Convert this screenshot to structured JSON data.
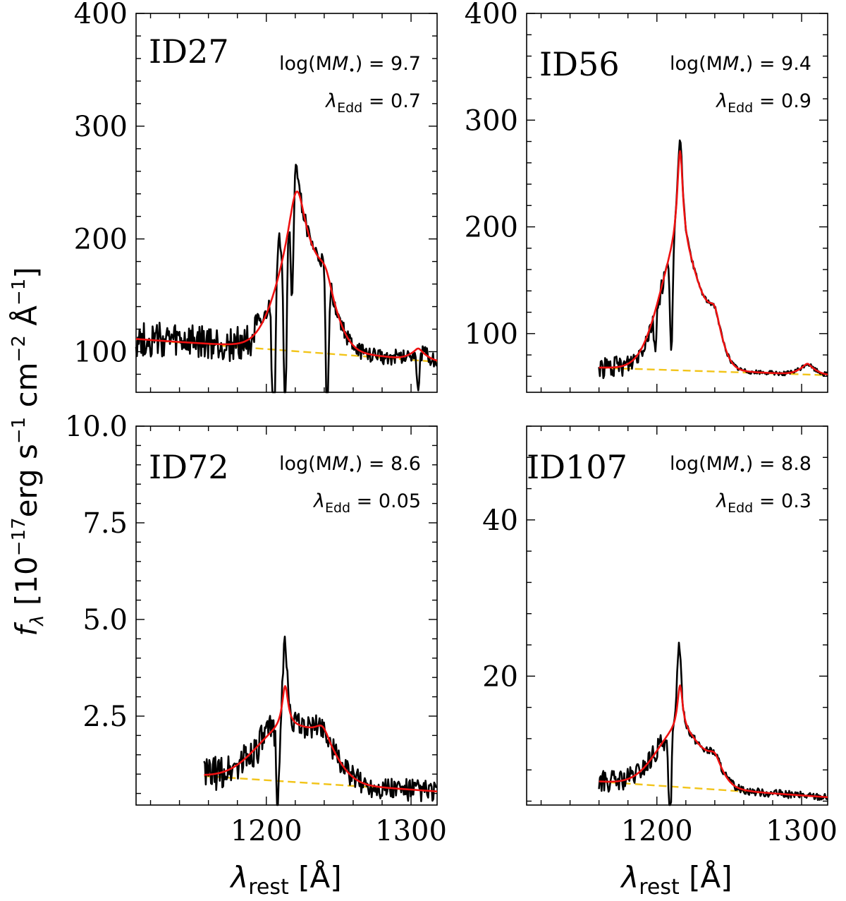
{
  "colors": {
    "observed": "#000000",
    "model": "#ee1111",
    "continuum": "#f2c419"
  },
  "ylabel": "f_λ [10^−17 erg s^−1 cm^−2 Å^−1]",
  "ylabel_parts": {
    "f": "f",
    "lambda": "λ",
    "open": "[10",
    "exp17": "−17",
    "erg": "erg s",
    "exp1a": "−1",
    "cm": "cm",
    "exp2": "−2",
    "ang": "Å",
    "exp1b": "−1",
    "close": "]"
  },
  "xlabel_parts": {
    "lambda": "λ",
    "sub": "rest",
    "unit": "[Å]"
  },
  "chart_data": [
    {
      "type": "line",
      "id": "ID27",
      "log_mass_label": "log(M",
      "log_mass_value": "9.7",
      "edd_value": "0.7",
      "xlim": [
        1110,
        1318
      ],
      "ylim": [
        64,
        400
      ],
      "yticks": [
        100,
        200,
        300,
        400
      ],
      "ytick_labels": [
        "100",
        "200",
        "300",
        "400"
      ],
      "xticks": [
        1200,
        1300
      ],
      "xtick_labels": [
        "",
        ""
      ],
      "x_start": 1110,
      "continuum": {
        "x": [
          1110,
          1318
        ],
        "y": [
          111,
          91
        ]
      },
      "components": [
        {
          "center": 1221,
          "amp": 137,
          "gsig": 14,
          "lsig": 7
        },
        {
          "center": 1241,
          "amp": 42,
          "gsig": 10,
          "lsig": 6
        },
        {
          "center": 1305,
          "amp": 10,
          "gsig": 6,
          "lsig": 3
        }
      ],
      "absorptions": [
        {
          "center": 1205,
          "depth": 190
        },
        {
          "center": 1213,
          "depth": 165
        },
        {
          "center": 1218,
          "depth": 90
        },
        {
          "center": 1242,
          "depth": 150
        },
        {
          "center": 1305,
          "depth": 40
        }
      ],
      "peak_spikes": [
        {
          "center": 1220,
          "height": 32
        },
        {
          "center": 1209,
          "height": 28
        }
      ],
      "noise": 16,
      "noise_cut": 1195,
      "noise_high": 7,
      "seed": 27
    },
    {
      "type": "line",
      "id": "ID56",
      "log_mass_label": "log(M",
      "log_mass_value": "9.4",
      "edd_value": "0.9",
      "xlim": [
        1110,
        1318
      ],
      "ylim": [
        45,
        400
      ],
      "yticks": [
        100,
        200,
        300,
        400
      ],
      "ytick_labels": [
        "100",
        "200",
        "300",
        "400"
      ],
      "xticks": [
        1200,
        1300
      ],
      "xtick_labels": [
        "",
        ""
      ],
      "x_start": 1160,
      "continuum": {
        "x": [
          1160,
          1318
        ],
        "y": [
          68,
          61
        ]
      },
      "components": [
        {
          "center": 1216,
          "amp": 205,
          "gsig": 14,
          "lsig": 2.4
        },
        {
          "center": 1240,
          "amp": 34,
          "gsig": 6,
          "lsig": 4
        },
        {
          "center": 1304,
          "amp": 10,
          "gsig": 6,
          "lsig": 3
        }
      ],
      "absorptions": [
        {
          "center": 1210,
          "depth": 100
        },
        {
          "center": 1199,
          "depth": 35
        }
      ],
      "peak_spikes": [
        {
          "center": 1216,
          "height": 12
        }
      ],
      "noise": 10,
      "noise_cut": 1205,
      "noise_high": 2,
      "seed": 56
    },
    {
      "type": "line",
      "id": "ID72",
      "log_mass_label": "log(M",
      "log_mass_value": "8.6",
      "edd_value": "0.05",
      "xlim": [
        1110,
        1318
      ],
      "ylim": [
        0.2,
        10.0
      ],
      "yticks": [
        2.5,
        5.0,
        7.5,
        10.0
      ],
      "ytick_labels": [
        "2.5",
        "5.0",
        "7.5",
        "10.0"
      ],
      "xticks": [
        1200,
        1300
      ],
      "xtick_labels": [
        "1200",
        "1300"
      ],
      "x_start": 1157,
      "continuum": {
        "x": [
          1157,
          1318
        ],
        "y": [
          0.95,
          0.55
        ]
      },
      "components": [
        {
          "center": 1213,
          "amp": 2.4,
          "gsig": 20,
          "lsig": 2.5
        },
        {
          "center": 1239,
          "amp": 0.9,
          "gsig": 12,
          "lsig": 6
        }
      ],
      "absorptions": [
        {
          "center": 1208,
          "depth": 2.2
        }
      ],
      "peak_spikes": [
        {
          "center": 1213,
          "height": 1.2
        }
      ],
      "noise": 0.45,
      "noise_cut": 1210,
      "noise_high": 0.3,
      "seed": 72
    },
    {
      "type": "line",
      "id": "ID107",
      "log_mass_label": "log(M",
      "log_mass_value": "8.8",
      "edd_value": "0.3",
      "xlim": [
        1110,
        1318
      ],
      "ylim": [
        3.5,
        52
      ],
      "yticks": [
        20,
        40
      ],
      "ytick_labels": [
        "20",
        "40"
      ],
      "xticks": [
        1200,
        1300
      ],
      "xtick_labels": [
        "1200",
        "1300"
      ],
      "x_start": 1160,
      "continuum": {
        "x": [
          1160,
          1318
        ],
        "y": [
          6.5,
          4.5
        ]
      },
      "components": [
        {
          "center": 1216,
          "amp": 13,
          "gsig": 16,
          "lsig": 2.2
        },
        {
          "center": 1240,
          "amp": 2.3,
          "gsig": 6,
          "lsig": 4
        }
      ],
      "absorptions": [
        {
          "center": 1209,
          "depth": 14
        }
      ],
      "peak_spikes": [
        {
          "center": 1215,
          "height": 6
        }
      ],
      "noise": 1.4,
      "noise_cut": 1205,
      "noise_high": 0.5,
      "seed": 107
    }
  ]
}
